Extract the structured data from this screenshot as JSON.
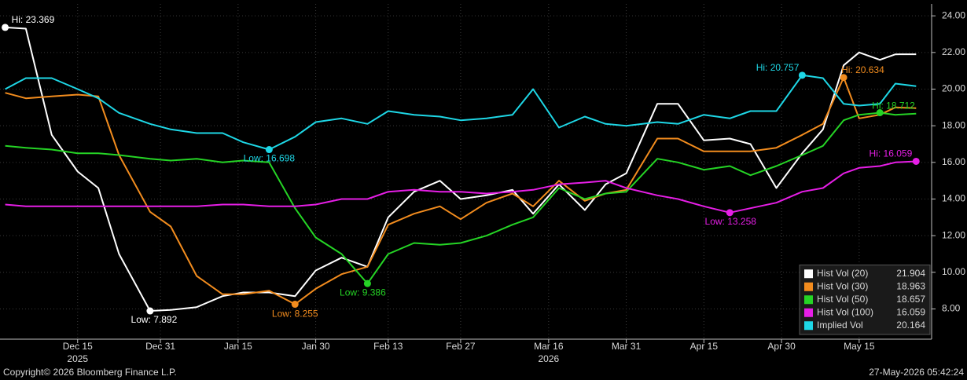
{
  "chart_data": {
    "type": "line",
    "x": [
      "2025-12-01",
      "2025-12-05",
      "2025-12-10",
      "2025-12-15",
      "2025-12-19",
      "2025-12-23",
      "2025-12-29",
      "2026-01-02",
      "2026-01-07",
      "2026-01-12",
      "2026-01-16",
      "2026-01-21",
      "2026-01-26",
      "2026-01-30",
      "2026-02-04",
      "2026-02-09",
      "2026-02-13",
      "2026-02-18",
      "2026-02-23",
      "2026-02-27",
      "2026-03-04",
      "2026-03-09",
      "2026-03-13",
      "2026-03-18",
      "2026-03-23",
      "2026-03-27",
      "2026-03-31",
      "2026-04-06",
      "2026-04-10",
      "2026-04-15",
      "2026-04-20",
      "2026-04-24",
      "2026-04-29",
      "2026-05-04",
      "2026-05-08",
      "2026-05-12",
      "2026-05-15",
      "2026-05-19",
      "2026-05-22",
      "2026-05-26"
    ],
    "series": [
      {
        "name": "Hist Vol (20)",
        "color": "#ffffff",
        "values": [
          23.369,
          23.3,
          17.5,
          15.5,
          14.6,
          11.0,
          7.892,
          7.95,
          8.1,
          8.7,
          8.9,
          8.9,
          8.7,
          10.1,
          10.8,
          10.3,
          13.0,
          14.4,
          15.0,
          14.0,
          14.2,
          14.5,
          13.2,
          14.8,
          13.4,
          14.8,
          15.4,
          19.2,
          19.2,
          17.2,
          17.3,
          17.0,
          14.6,
          16.5,
          17.8,
          21.3,
          22.0,
          21.6,
          21.9,
          21.904
        ]
      },
      {
        "name": "Hist Vol (30)",
        "color": "#f28c1e",
        "values": [
          19.8,
          19.5,
          19.6,
          19.7,
          19.6,
          16.4,
          13.3,
          12.5,
          9.8,
          8.8,
          8.8,
          9.0,
          8.255,
          9.1,
          9.9,
          10.3,
          12.6,
          13.2,
          13.6,
          12.9,
          13.8,
          14.3,
          13.6,
          15.0,
          13.9,
          14.3,
          14.5,
          17.3,
          17.3,
          16.6,
          16.6,
          16.6,
          16.8,
          17.5,
          18.1,
          20.634,
          18.4,
          18.6,
          19.0,
          18.963
        ]
      },
      {
        "name": "Hist Vol (50)",
        "color": "#25d425",
        "values": [
          16.9,
          16.8,
          16.7,
          16.5,
          16.5,
          16.4,
          16.2,
          16.1,
          16.2,
          16.0,
          16.1,
          16.0,
          13.5,
          11.9,
          11.0,
          9.386,
          11.0,
          11.6,
          11.5,
          11.6,
          12.0,
          12.6,
          13.0,
          14.6,
          14.0,
          14.3,
          14.4,
          16.2,
          16.0,
          15.6,
          15.8,
          15.3,
          15.8,
          16.4,
          16.9,
          18.3,
          18.6,
          18.712,
          18.6,
          18.657
        ]
      },
      {
        "name": "Hist Vol (100)",
        "color": "#e61ee6",
        "values": [
          13.7,
          13.6,
          13.6,
          13.6,
          13.6,
          13.6,
          13.6,
          13.6,
          13.6,
          13.7,
          13.7,
          13.6,
          13.6,
          13.7,
          14.0,
          14.0,
          14.4,
          14.5,
          14.4,
          14.4,
          14.3,
          14.4,
          14.5,
          14.8,
          14.9,
          15.0,
          14.6,
          14.2,
          14.0,
          13.6,
          13.258,
          13.5,
          13.8,
          14.4,
          14.6,
          15.4,
          15.7,
          15.8,
          16.0,
          16.059
        ]
      },
      {
        "name": "Implied Vol",
        "color": "#1ed7e6",
        "values": [
          20.0,
          20.6,
          20.6,
          20.0,
          19.5,
          18.7,
          18.1,
          17.8,
          17.6,
          17.6,
          17.1,
          16.698,
          17.4,
          18.2,
          18.4,
          18.1,
          18.8,
          18.6,
          18.5,
          18.3,
          18.4,
          18.6,
          20.0,
          17.9,
          18.5,
          18.1,
          18.0,
          18.2,
          18.1,
          18.6,
          18.4,
          18.8,
          18.8,
          20.757,
          20.6,
          19.2,
          19.1,
          19.2,
          20.3,
          20.164
        ]
      }
    ],
    "annotations": [
      {
        "series": 0,
        "x": "2025-12-01",
        "value": 23.369,
        "label": "Hi: 23.369"
      },
      {
        "series": 0,
        "x": "2025-12-29",
        "value": 7.892,
        "label": "Low: 7.892"
      },
      {
        "series": 1,
        "x": "2026-01-26",
        "value": 8.255,
        "label": "Low: 8.255"
      },
      {
        "series": 2,
        "x": "2026-02-09",
        "value": 9.386,
        "label": "Low: 9.386"
      },
      {
        "series": 4,
        "x": "2026-01-21",
        "value": 16.698,
        "label": "Low: 16.698"
      },
      {
        "series": 4,
        "x": "2026-05-04",
        "value": 20.757,
        "label": "Hi: 20.757"
      },
      {
        "series": 1,
        "x": "2026-05-12",
        "value": 20.634,
        "label": "Hi: 20.634"
      },
      {
        "series": 2,
        "x": "2026-05-19",
        "value": 18.712,
        "label": "Hi: 18.712"
      },
      {
        "series": 3,
        "x": "2026-05-26",
        "value": 16.059,
        "label": "Hi: 16.059"
      },
      {
        "series": 3,
        "x": "2026-04-20",
        "value": 13.258,
        "label": "Low: 13.258"
      }
    ],
    "xlim": [
      "2025-11-30",
      "2026-05-29"
    ],
    "xticks": [
      {
        "value": "2025-12-15",
        "label": "Dec 15"
      },
      {
        "value": "2025-12-31",
        "label": "Dec 31"
      },
      {
        "value": "2026-01-15",
        "label": "Jan 15"
      },
      {
        "value": "2026-01-30",
        "label": "Jan 30"
      },
      {
        "value": "2026-02-13",
        "label": "Feb 13"
      },
      {
        "value": "2026-02-27",
        "label": "Feb 27"
      },
      {
        "value": "2026-03-16",
        "label": "Mar 16"
      },
      {
        "value": "2026-03-31",
        "label": "Mar 31"
      },
      {
        "value": "2026-04-15",
        "label": "Apr 15"
      },
      {
        "value": "2026-04-30",
        "label": "Apr 30"
      },
      {
        "value": "2026-05-15",
        "label": "May 15"
      }
    ],
    "x_year_labels": [
      {
        "value": "2025-12-15",
        "label": "2025"
      },
      {
        "value": "2026-03-16",
        "label": "2026"
      }
    ],
    "ylim": [
      6.35,
      24.65
    ],
    "yticks": [
      {
        "value": 8,
        "label": "8.00"
      },
      {
        "value": 10,
        "label": "10.00"
      },
      {
        "value": 12,
        "label": "12.00"
      },
      {
        "value": 14,
        "label": "14.00"
      },
      {
        "value": 16,
        "label": "16.00"
      },
      {
        "value": 18,
        "label": "18.00"
      },
      {
        "value": 20,
        "label": "20.00"
      },
      {
        "value": 22,
        "label": "22.00"
      },
      {
        "value": 24,
        "label": "24.00"
      }
    ],
    "grid": true,
    "legend": "lower-right",
    "footer_left": "Copyright© 2026 Bloomberg Finance L.P.",
    "footer_right": "27-May-2026 05:42:24"
  }
}
